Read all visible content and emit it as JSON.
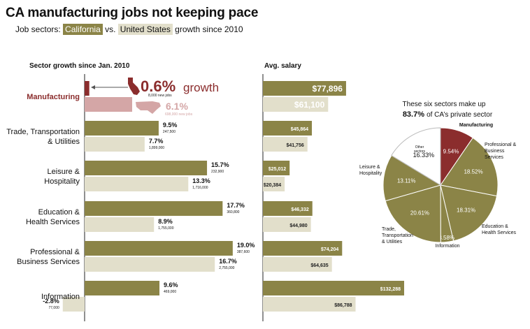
{
  "header": {
    "title": "CA manufacturing jobs not keeping pace",
    "subtitle_prefix": "Job sectors:",
    "subtitle_ca": "California",
    "subtitle_vs": "vs.",
    "subtitle_us": "United States",
    "subtitle_suffix": "growth since 2010"
  },
  "colors": {
    "california": "#8b8447",
    "united_states": "#e2dfcb",
    "manufacturing_ca": "#8b2d2d",
    "manufacturing_us": "#d4a6a6",
    "map_ca": "#8b2d2d",
    "map_us": "#d4a6a6"
  },
  "icons": [
    "california-map-icon",
    "us-map-icon",
    "arrow-left-icon"
  ],
  "chart_data": [
    {
      "type": "bar",
      "title": "Sector growth since Jan. 2010",
      "unit": "%",
      "categories": [
        "Manufacturing",
        "Trade, Transportation\n& Utilities",
        "Leisure &\nHospitality",
        "Education &\nHealth Services",
        "Professional &\nBusiness Services",
        "Information"
      ],
      "series": [
        {
          "name": "California",
          "values": [
            0.6,
            9.5,
            15.7,
            17.7,
            19.0,
            9.6
          ],
          "labels": [
            "0.6%",
            "9.5%",
            "15.7%",
            "17.7%",
            "19.0%",
            "9.6%"
          ],
          "jobs": [
            "8,000 new jobs",
            "247,500",
            "232,900",
            "360,800",
            "387,600",
            "469,000"
          ]
        },
        {
          "name": "United States",
          "values": [
            6.1,
            7.7,
            13.3,
            8.9,
            16.7,
            -2.8
          ],
          "labels": [
            "6.1%",
            "7.7%",
            "13.3%",
            "8.9%",
            "16.7%",
            "-2.8%"
          ],
          "jobs": [
            "698,000 new jobs",
            "1,899,000",
            "1,716,000",
            "1,755,000",
            "2,755,000",
            "77,000"
          ]
        }
      ],
      "annotation": "growth"
    },
    {
      "type": "bar",
      "title": "Avg. salary",
      "categories": [
        "Manufacturing",
        "Trade, Transportation & Utilities",
        "Leisure & Hospitality",
        "Education & Health Services",
        "Professional & Business Services",
        "Information"
      ],
      "series": [
        {
          "name": "California",
          "values": [
            77896,
            45864,
            25012,
            46332,
            74204,
            132288
          ],
          "labels": [
            "$77,896",
            "$45,864",
            "$25,012",
            "$46,332",
            "$74,204",
            "$132,288"
          ]
        },
        {
          "name": "United States",
          "values": [
            61100,
            41756,
            20384,
            44980,
            64635,
            86788
          ],
          "labels": [
            "$61,100",
            "$41,756",
            "$20,384",
            "$44,980",
            "$64,635",
            "$86,788"
          ]
        }
      ]
    },
    {
      "type": "pie",
      "title_line1": "These six sectors make up",
      "title_bold": "83.7%",
      "title_rest": "of CA’s private sector",
      "slices": [
        {
          "label": "Manufacturing",
          "value": 9.54,
          "value_label": "9.54%"
        },
        {
          "label": "Professional &\nBusiness\nServices",
          "value": 18.52,
          "value_label": "18.52%"
        },
        {
          "label": "Education &\nHealth Services",
          "value": 18.31,
          "value_label": "18.31%"
        },
        {
          "label": "Information",
          "value": 3.58,
          "value_label": "3.58%"
        },
        {
          "label": "Trade,\nTransportation\n& Utilities",
          "value": 20.61,
          "value_label": "20.61%"
        },
        {
          "label": "Leisure &\nHospitality",
          "value": 13.11,
          "value_label": "13.11%"
        },
        {
          "label": "Other\nsectors",
          "value": 16.33,
          "value_label": "16.33%"
        }
      ]
    }
  ]
}
